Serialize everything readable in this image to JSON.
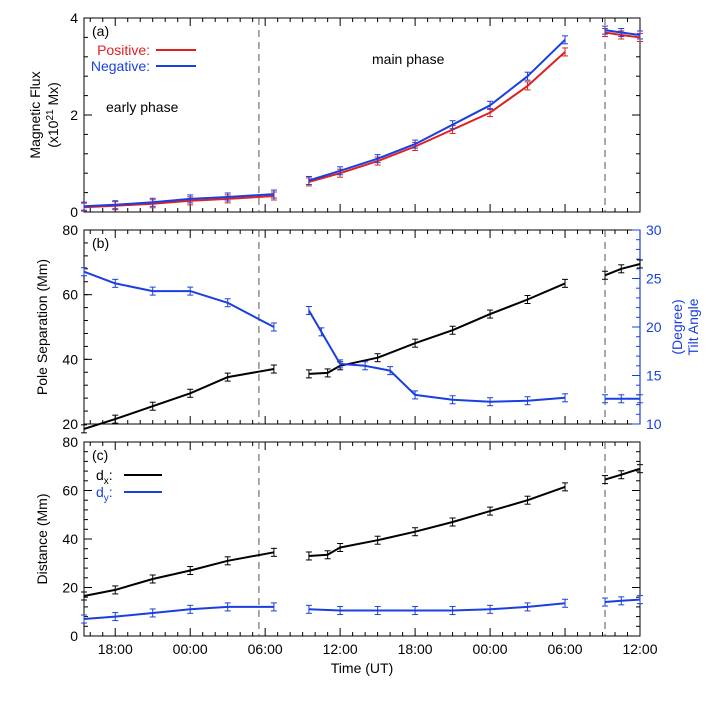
{
  "colors": {
    "positive": "#e02020",
    "negative": "#1a3fe0",
    "separation": "#000000",
    "tilt": "#1a3fe0",
    "axis": "#000000",
    "dashed": "#555555"
  },
  "xaxis": {
    "label": "Time (UT)",
    "ticks": [
      "18:00",
      "00:00",
      "06:00",
      "12:00",
      "18:00",
      "00:00",
      "06:00",
      "12:00"
    ],
    "tick_hours": [
      18,
      24,
      30,
      36,
      42,
      48,
      54,
      60
    ],
    "range_hours": [
      15.5,
      60
    ],
    "phase_boundaries_hours": [
      29.5,
      57.2
    ]
  },
  "chart_data": [
    {
      "type": "line",
      "panel_label": "(a)",
      "ylabel_line1": "Magnetic Flux",
      "ylabel_line2": "(x10",
      "ylabel_sup": "21",
      "ylabel_tail": " Mx)",
      "ylim": [
        0,
        4
      ],
      "yticks": [
        "0",
        "2",
        "4"
      ],
      "ytick_values": [
        0,
        2,
        4
      ],
      "legend": {
        "positive": "Positive:",
        "negative": "Negative:"
      },
      "annotations": {
        "early": "early phase",
        "main": "main phase"
      },
      "series": [
        {
          "name": "Positive",
          "segments": [
            {
              "x": [
                15.5,
                18,
                21,
                24,
                27,
                30.7
              ],
              "y": [
                0.1,
                0.13,
                0.17,
                0.23,
                0.27,
                0.33
              ]
            },
            {
              "x": [
                33.5,
                36,
                39,
                42,
                45,
                48,
                51,
                54
              ],
              "y": [
                0.62,
                0.8,
                1.05,
                1.35,
                1.7,
                2.05,
                2.6,
                3.3
              ]
            },
            {
              "x": [
                57.2,
                58.5,
                60
              ],
              "y": [
                3.7,
                3.65,
                3.6
              ]
            }
          ]
        },
        {
          "name": "Negative",
          "segments": [
            {
              "x": [
                15.5,
                18,
                21,
                24,
                27,
                30.7
              ],
              "y": [
                0.12,
                0.15,
                0.2,
                0.27,
                0.31,
                0.37
              ]
            },
            {
              "x": [
                33.5,
                36,
                39,
                42,
                45,
                48,
                51,
                54
              ],
              "y": [
                0.65,
                0.85,
                1.1,
                1.4,
                1.8,
                2.2,
                2.8,
                3.55
              ]
            },
            {
              "x": [
                57.2,
                58.5,
                60
              ],
              "y": [
                3.75,
                3.7,
                3.65
              ]
            }
          ]
        }
      ]
    },
    {
      "type": "line",
      "panel_label": "(b)",
      "ylabel": "Pole Separation (Mm)",
      "ylim": [
        20,
        80
      ],
      "yticks": [
        "20",
        "40",
        "60",
        "80"
      ],
      "ytick_values": [
        20,
        40,
        60,
        80
      ],
      "y2label_line1": "(Degree)",
      "y2label_line2": "Tilt Angle",
      "y2lim": [
        10,
        30
      ],
      "y2ticks": [
        "10",
        "15",
        "20",
        "25",
        "30"
      ],
      "y2tick_values": [
        10,
        15,
        20,
        25,
        30
      ],
      "series": [
        {
          "axis": "left",
          "segments": [
            {
              "x": [
                15.5,
                18,
                21,
                24,
                27,
                30.7
              ],
              "y": [
                18.5,
                21.5,
                25.5,
                29.5,
                34.5,
                37
              ]
            },
            {
              "x": [
                33.5,
                35,
                36,
                39,
                42,
                45,
                48,
                51,
                54
              ],
              "y": [
                35.5,
                35.8,
                38,
                40.5,
                45,
                49,
                54,
                58.5,
                63.5
              ]
            },
            {
              "x": [
                57.2,
                58.5,
                60
              ],
              "y": [
                66,
                68,
                69.5
              ]
            }
          ]
        },
        {
          "axis": "right",
          "segments": [
            {
              "x": [
                15.5,
                18,
                21,
                24,
                27,
                30.7
              ],
              "y": [
                25.7,
                24.5,
                23.7,
                23.7,
                22.5,
                20
              ]
            },
            {
              "x": [
                33.5,
                34.5,
                36,
                38,
                40,
                42,
                45,
                48,
                51,
                54
              ],
              "y": [
                21.7,
                19.5,
                16.2,
                16,
                15.5,
                13,
                12.5,
                12.3,
                12.4,
                12.7
              ]
            },
            {
              "x": [
                57.2,
                58.5,
                60
              ],
              "y": [
                12.6,
                12.6,
                12.6
              ]
            }
          ]
        }
      ]
    },
    {
      "type": "line",
      "panel_label": "(c)",
      "ylabel": "Distance (Mm)",
      "ylim": [
        0,
        80
      ],
      "yticks": [
        "0",
        "20",
        "40",
        "60",
        "80"
      ],
      "ytick_values": [
        0,
        20,
        40,
        60,
        80
      ],
      "legend": {
        "dx_main": "d",
        "dx_sub": "x",
        "dx_tail": ":",
        "dy_main": "d",
        "dy_sub": "y",
        "dy_tail": ":"
      },
      "series": [
        {
          "segments": [
            {
              "x": [
                15.5,
                18,
                21,
                24,
                27,
                30.7
              ],
              "y": [
                16.5,
                19,
                23.5,
                27,
                31,
                34.5
              ]
            },
            {
              "x": [
                33.5,
                35,
                36,
                39,
                42,
                45,
                48,
                51,
                54
              ],
              "y": [
                33,
                33.5,
                36.5,
                39.5,
                43,
                47,
                51.5,
                56,
                61.5
              ]
            },
            {
              "x": [
                57.2,
                58.5,
                60
              ],
              "y": [
                64.5,
                66.5,
                69
              ]
            }
          ]
        },
        {
          "segments": [
            {
              "x": [
                15.5,
                18,
                21,
                24,
                27,
                30.7
              ],
              "y": [
                7,
                8,
                9.5,
                11,
                12,
                12
              ]
            },
            {
              "x": [
                33.5,
                36,
                39,
                42,
                45,
                48,
                51,
                54
              ],
              "y": [
                11,
                10.5,
                10.5,
                10.5,
                10.5,
                11,
                12,
                13.5
              ]
            },
            {
              "x": [
                57.2,
                58.5,
                60
              ],
              "y": [
                14,
                14.5,
                15
              ]
            }
          ]
        }
      ]
    }
  ]
}
